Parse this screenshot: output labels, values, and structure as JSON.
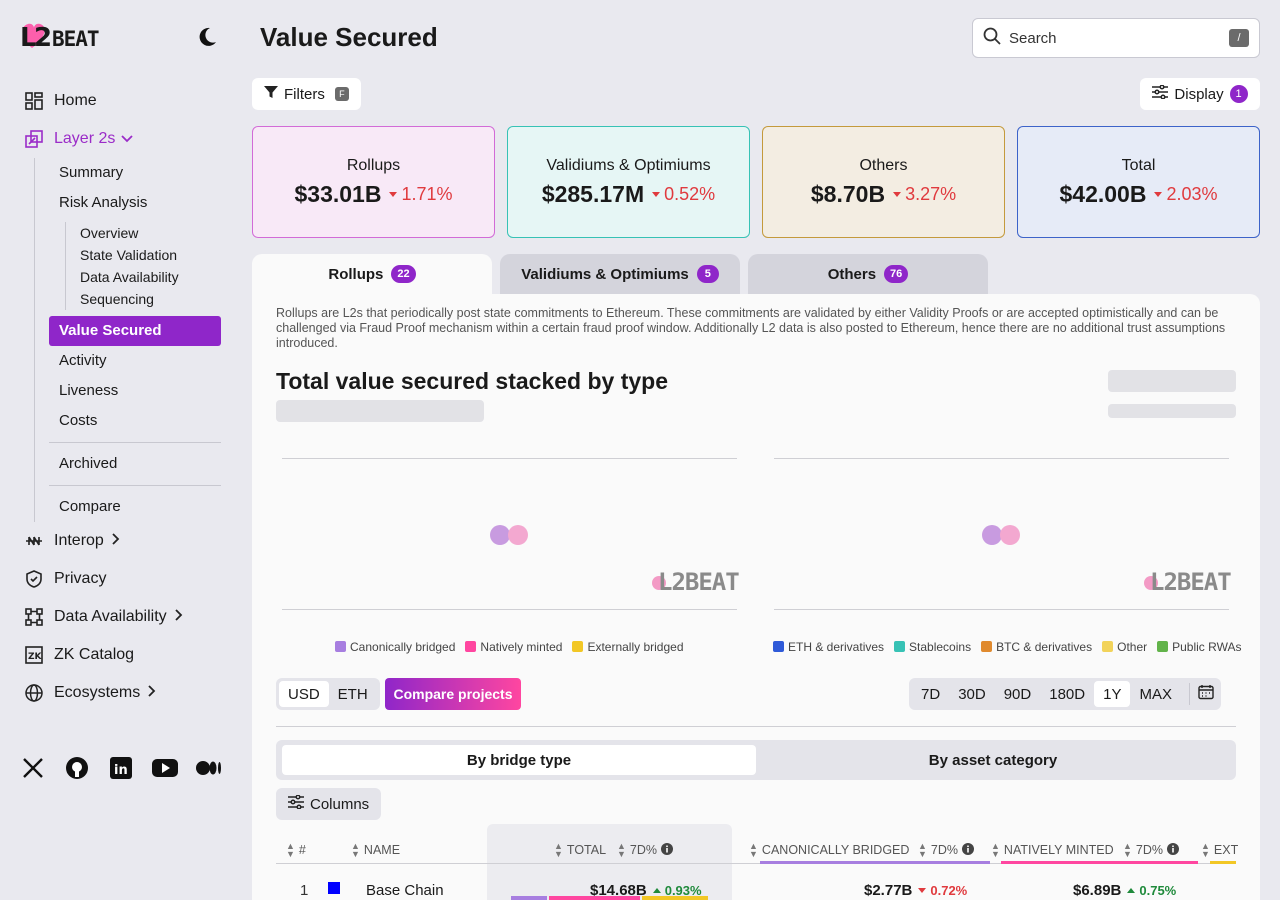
{
  "sidebar": {
    "logo": "L2BEAT",
    "nav": {
      "home": "Home",
      "layer2s": "Layer 2s",
      "summary": "Summary",
      "risk_analysis": "Risk Analysis",
      "risk_sub": [
        "Overview",
        "State Validation",
        "Data Availability",
        "Sequencing"
      ],
      "value_secured": "Value Secured",
      "activity": "Activity",
      "liveness": "Liveness",
      "costs": "Costs",
      "archived": "Archived",
      "compare": "Compare",
      "interop": "Interop",
      "privacy": "Privacy",
      "data_availability": "Data Availability",
      "zk_catalog": "ZK Catalog",
      "ecosystems": "Ecosystems"
    },
    "socials": [
      "x-icon",
      "github-icon",
      "linkedin-icon",
      "youtube-icon",
      "medium-icon"
    ]
  },
  "header": {
    "title": "Value Secured",
    "search_placeholder": "Search",
    "search_shortcut": "/",
    "filters_label": "Filters",
    "filters_shortcut": "F",
    "display_label": "Display",
    "display_count": "1"
  },
  "cards": [
    {
      "label": "Rollups",
      "value": "$33.01B",
      "change": "1.71%",
      "bg": "#f8e9f7",
      "border": "#d26bd7"
    },
    {
      "label": "Validiums & Optimiums",
      "value": "$285.17M",
      "change": "0.52%",
      "bg": "#e6f6f5",
      "border": "#37c2b5"
    },
    {
      "label": "Others",
      "value": "$8.70B",
      "change": "3.27%",
      "bg": "#f3ede2",
      "border": "#c49a3c"
    },
    {
      "label": "Total",
      "value": "$42.00B",
      "change": "2.03%",
      "bg": "#e6ebf7",
      "border": "#3d63c9"
    }
  ],
  "tabs": [
    {
      "label": "Rollups",
      "count": "22"
    },
    {
      "label": "Validiums & Optimiums",
      "count": "5"
    },
    {
      "label": "Others",
      "count": "76"
    }
  ],
  "panel": {
    "description": "Rollups are L2s that periodically post state commitments to Ethereum. These commitments are validated by either Validity Proofs or are accepted optimistically and can be challenged via Fraud Proof mechanism within a certain fraud proof window. Additionally L2 data is also posted to Ethereum, hence there are no additional trust assumptions introduced.",
    "chart_title": "Total value secured stacked by type",
    "watermark": "L2BEAT",
    "legend_left": [
      {
        "label": "Canonically bridged",
        "color": "#a77ee0"
      },
      {
        "label": "Natively minted",
        "color": "#ff46a0"
      },
      {
        "label": "Externally bridged",
        "color": "#f2c725"
      }
    ],
    "legend_right": [
      {
        "label": "ETH & derivatives",
        "color": "#2f5ad8"
      },
      {
        "label": "Stablecoins",
        "color": "#37c2b5"
      },
      {
        "label": "BTC & derivatives",
        "color": "#e08a2e"
      },
      {
        "label": "Other",
        "color": "#f2d35a"
      },
      {
        "label": "Public RWAs",
        "color": "#62b34a"
      }
    ],
    "unit_options": [
      "USD",
      "ETH"
    ],
    "compare_label": "Compare projects",
    "ranges": [
      "7D",
      "30D",
      "90D",
      "180D",
      "1Y",
      "MAX"
    ],
    "selected_range": "1Y",
    "breakdown": [
      "By bridge type",
      "By asset category"
    ],
    "columns_label": "Columns"
  },
  "table": {
    "headers": {
      "rank": "#",
      "name": "NAME",
      "total": "TOTAL",
      "seven_d": "7D%",
      "canonical": "CANONICALLY BRIDGED",
      "native": "NATIVELY MINTED",
      "external": "EXT"
    },
    "rows": [
      {
        "rank": "1",
        "name": "Base Chain",
        "total": "$14.68B",
        "total_change": "0.93%",
        "canonical": "$2.77B",
        "canonical_change": "0.72%",
        "native": "$6.89B",
        "native_change": "0.75%"
      }
    ]
  }
}
